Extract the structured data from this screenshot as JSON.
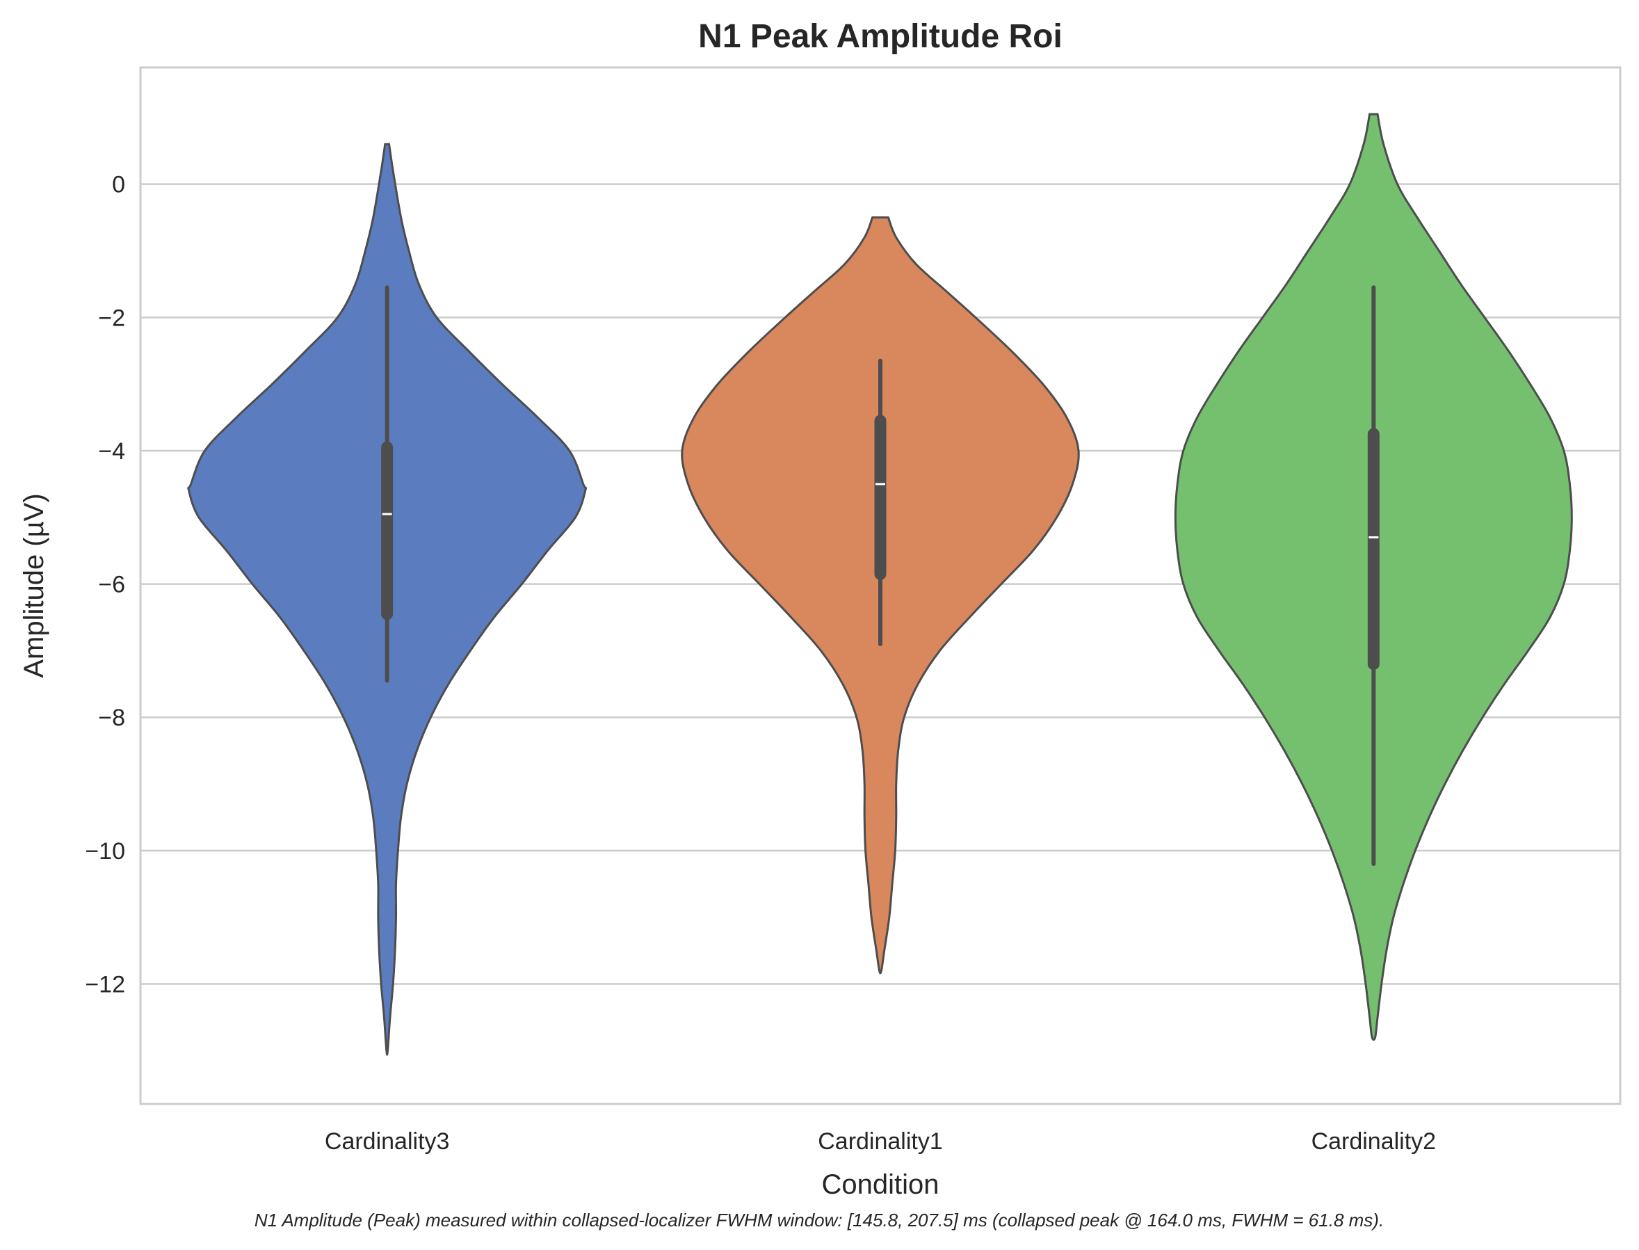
{
  "chart_data": {
    "type": "violin",
    "title": "N1 Peak Amplitude Roi",
    "xlabel": "Condition",
    "ylabel": "Amplitude (µV)",
    "caption": "N1 Amplitude (Peak) measured within collapsed-localizer FWHM window: [145.8, 207.5] ms (collapsed peak @ 164.0 ms, FWHM = 61.8 ms).",
    "ylim": [
      -13.8,
      1.75
    ],
    "yticks": [
      0,
      -2,
      -4,
      -6,
      -8,
      -10,
      -12
    ],
    "ytick_labels": [
      "0",
      "−2",
      "−4",
      "−6",
      "−8",
      "−10",
      "−12"
    ],
    "grid": true,
    "categories": [
      "Cardinality3",
      "Cardinality1",
      "Cardinality2"
    ],
    "series": [
      {
        "category": "Cardinality3",
        "color": "#5b7dc0",
        "median": -4.95,
        "q1": -6.45,
        "q3": -3.95,
        "whisker_low": -7.45,
        "whisker_high": -1.55,
        "kde_min": -13.0,
        "kde_max": 0.6,
        "density": [
          [
            0.6,
            0.01
          ],
          [
            0.2,
            0.03
          ],
          [
            -0.5,
            0.07
          ],
          [
            -1.0,
            0.11
          ],
          [
            -1.5,
            0.16
          ],
          [
            -2.0,
            0.25
          ],
          [
            -2.5,
            0.41
          ],
          [
            -3.0,
            0.58
          ],
          [
            -3.5,
            0.76
          ],
          [
            -4.0,
            0.92
          ],
          [
            -4.5,
            0.99
          ],
          [
            -4.6,
            1.0
          ],
          [
            -5.0,
            0.95
          ],
          [
            -5.5,
            0.81
          ],
          [
            -6.0,
            0.68
          ],
          [
            -6.5,
            0.54
          ],
          [
            -7.0,
            0.42
          ],
          [
            -7.5,
            0.31
          ],
          [
            -8.0,
            0.22
          ],
          [
            -8.5,
            0.15
          ],
          [
            -9.0,
            0.1
          ],
          [
            -9.5,
            0.07
          ],
          [
            -10.0,
            0.055
          ],
          [
            -10.5,
            0.045
          ],
          [
            -11.0,
            0.045
          ],
          [
            -11.5,
            0.04
          ],
          [
            -12.0,
            0.03
          ],
          [
            -12.5,
            0.015
          ],
          [
            -13.0,
            0.003
          ]
        ]
      },
      {
        "category": "Cardinality1",
        "color": "#d9885e",
        "median": -4.5,
        "q1": -5.85,
        "q3": -3.55,
        "whisker_low": -6.9,
        "whisker_high": -2.65,
        "kde_min": -11.8,
        "kde_max": -0.5,
        "density": [
          [
            -0.5,
            0.04
          ],
          [
            -0.8,
            0.08
          ],
          [
            -1.2,
            0.18
          ],
          [
            -1.6,
            0.33
          ],
          [
            -2.0,
            0.48
          ],
          [
            -2.5,
            0.66
          ],
          [
            -3.0,
            0.82
          ],
          [
            -3.5,
            0.94
          ],
          [
            -4.0,
            1.0
          ],
          [
            -4.5,
            0.97
          ],
          [
            -5.0,
            0.89
          ],
          [
            -5.5,
            0.77
          ],
          [
            -6.0,
            0.61
          ],
          [
            -6.5,
            0.45
          ],
          [
            -7.0,
            0.3
          ],
          [
            -7.5,
            0.19
          ],
          [
            -8.0,
            0.12
          ],
          [
            -8.5,
            0.09
          ],
          [
            -9.0,
            0.08
          ],
          [
            -9.5,
            0.08
          ],
          [
            -10.0,
            0.075
          ],
          [
            -10.5,
            0.06
          ],
          [
            -11.0,
            0.045
          ],
          [
            -11.5,
            0.02
          ],
          [
            -11.8,
            0.005
          ]
        ]
      },
      {
        "category": "Cardinality2",
        "color": "#74c06f",
        "median": -5.3,
        "q1": -7.2,
        "q3": -3.75,
        "whisker_low": -10.2,
        "whisker_high": -1.55,
        "kde_min": -12.8,
        "kde_max": 1.05,
        "density": [
          [
            1.05,
            0.02
          ],
          [
            0.6,
            0.05
          ],
          [
            0.0,
            0.12
          ],
          [
            -0.5,
            0.22
          ],
          [
            -1.0,
            0.33
          ],
          [
            -1.5,
            0.44
          ],
          [
            -2.0,
            0.56
          ],
          [
            -2.5,
            0.68
          ],
          [
            -3.0,
            0.79
          ],
          [
            -3.5,
            0.89
          ],
          [
            -4.0,
            0.96
          ],
          [
            -4.5,
            0.99
          ],
          [
            -5.0,
            1.0
          ],
          [
            -5.5,
            0.99
          ],
          [
            -6.0,
            0.96
          ],
          [
            -6.5,
            0.89
          ],
          [
            -7.0,
            0.78
          ],
          [
            -7.5,
            0.66
          ],
          [
            -8.0,
            0.55
          ],
          [
            -8.5,
            0.45
          ],
          [
            -9.0,
            0.36
          ],
          [
            -9.5,
            0.28
          ],
          [
            -10.0,
            0.21
          ],
          [
            -10.5,
            0.15
          ],
          [
            -11.0,
            0.1
          ],
          [
            -11.5,
            0.065
          ],
          [
            -12.0,
            0.04
          ],
          [
            -12.5,
            0.02
          ],
          [
            -12.8,
            0.008
          ]
        ]
      }
    ]
  }
}
